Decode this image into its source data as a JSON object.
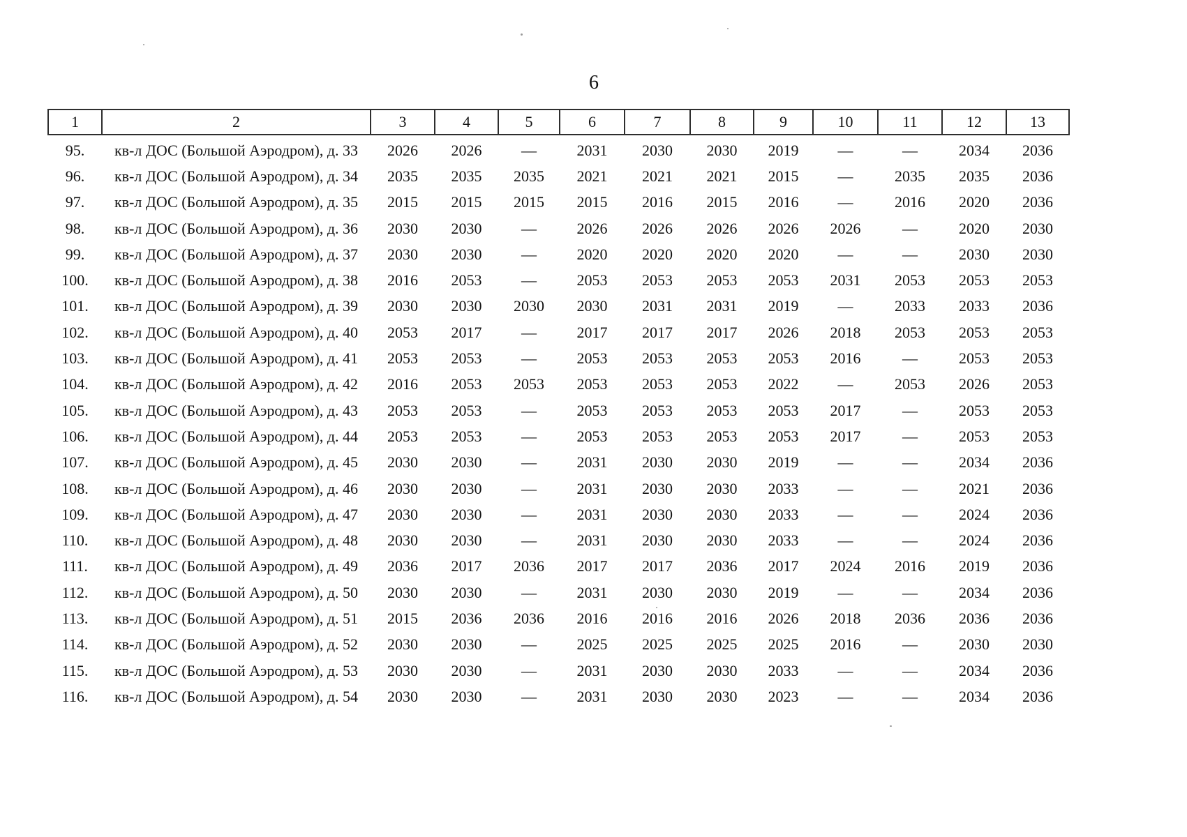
{
  "page": {
    "number": "6"
  },
  "table": {
    "headers": [
      "1",
      "2",
      "3",
      "4",
      "5",
      "6",
      "7",
      "8",
      "9",
      "10",
      "11",
      "12",
      "13"
    ],
    "rows": [
      {
        "num": "95.",
        "name": "кв-л ДОС (Большой Аэродром), д. 33",
        "values": [
          "2026",
          "2026",
          "—",
          "2031",
          "2030",
          "2030",
          "2019",
          "—",
          "—",
          "2034",
          "2036"
        ]
      },
      {
        "num": "96.",
        "name": "кв-л ДОС (Большой Аэродром), д. 34",
        "values": [
          "2035",
          "2035",
          "2035",
          "2021",
          "2021",
          "2021",
          "2015",
          "—",
          "2035",
          "2035",
          "2036"
        ]
      },
      {
        "num": "97.",
        "name": "кв-л ДОС (Большой Аэродром), д. 35",
        "values": [
          "2015",
          "2015",
          "2015",
          "2015",
          "2016",
          "2015",
          "2016",
          "—",
          "2016",
          "2020",
          "2036"
        ]
      },
      {
        "num": "98.",
        "name": "кв-л ДОС (Большой Аэродром), д. 36",
        "values": [
          "2030",
          "2030",
          "—",
          "2026",
          "2026",
          "2026",
          "2026",
          "2026",
          "—",
          "2020",
          "2030"
        ]
      },
      {
        "num": "99.",
        "name": "кв-л ДОС (Большой Аэродром), д. 37",
        "values": [
          "2030",
          "2030",
          "—",
          "2020",
          "2020",
          "2020",
          "2020",
          "—",
          "—",
          "2030",
          "2030"
        ]
      },
      {
        "num": "100.",
        "name": "кв-л ДОС (Большой Аэродром), д. 38",
        "values": [
          "2016",
          "2053",
          "—",
          "2053",
          "2053",
          "2053",
          "2053",
          "2031",
          "2053",
          "2053",
          "2053"
        ]
      },
      {
        "num": "101.",
        "name": "кв-л ДОС (Большой Аэродром), д. 39",
        "values": [
          "2030",
          "2030",
          "2030",
          "2030",
          "2031",
          "2031",
          "2019",
          "—",
          "2033",
          "2033",
          "2036"
        ]
      },
      {
        "num": "102.",
        "name": "кв-л ДОС (Большой Аэродром), д. 40",
        "values": [
          "2053",
          "2017",
          "—",
          "2017",
          "2017",
          "2017",
          "2026",
          "2018",
          "2053",
          "2053",
          "2053"
        ]
      },
      {
        "num": "103.",
        "name": "кв-л ДОС (Большой Аэродром), д. 41",
        "values": [
          "2053",
          "2053",
          "—",
          "2053",
          "2053",
          "2053",
          "2053",
          "2016",
          "—",
          "2053",
          "2053"
        ]
      },
      {
        "num": "104.",
        "name": "кв-л ДОС (Большой Аэродром), д. 42",
        "values": [
          "2016",
          "2053",
          "2053",
          "2053",
          "2053",
          "2053",
          "2022",
          "—",
          "2053",
          "2026",
          "2053"
        ]
      },
      {
        "num": "105.",
        "name": "кв-л ДОС (Большой Аэродром), д. 43",
        "values": [
          "2053",
          "2053",
          "—",
          "2053",
          "2053",
          "2053",
          "2053",
          "2017",
          "—",
          "2053",
          "2053"
        ]
      },
      {
        "num": "106.",
        "name": "кв-л ДОС (Большой Аэродром), д. 44",
        "values": [
          "2053",
          "2053",
          "—",
          "2053",
          "2053",
          "2053",
          "2053",
          "2017",
          "—",
          "2053",
          "2053"
        ]
      },
      {
        "num": "107.",
        "name": "кв-л ДОС (Большой Аэродром), д. 45",
        "values": [
          "2030",
          "2030",
          "—",
          "2031",
          "2030",
          "2030",
          "2019",
          "—",
          "—",
          "2034",
          "2036"
        ]
      },
      {
        "num": "108.",
        "name": "кв-л ДОС (Большой Аэродром), д. 46",
        "values": [
          "2030",
          "2030",
          "—",
          "2031",
          "2030",
          "2030",
          "2033",
          "—",
          "—",
          "2021",
          "2036"
        ]
      },
      {
        "num": "109.",
        "name": "кв-л ДОС (Большой Аэродром), д. 47",
        "values": [
          "2030",
          "2030",
          "—",
          "2031",
          "2030",
          "2030",
          "2033",
          "—",
          "—",
          "2024",
          "2036"
        ]
      },
      {
        "num": "110.",
        "name": "кв-л ДОС (Большой Аэродром), д. 48",
        "values": [
          "2030",
          "2030",
          "—",
          "2031",
          "2030",
          "2030",
          "2033",
          "—",
          "—",
          "2024",
          "2036"
        ]
      },
      {
        "num": "111.",
        "name": "кв-л ДОС (Большой Аэродром), д. 49",
        "values": [
          "2036",
          "2017",
          "2036",
          "2017",
          "2017",
          "2036",
          "2017",
          "2024",
          "2016",
          "2019",
          "2036"
        ]
      },
      {
        "num": "112.",
        "name": "кв-л ДОС (Большой Аэродром), д. 50",
        "values": [
          "2030",
          "2030",
          "—",
          "2031",
          "2030",
          "2030",
          "2019",
          "—",
          "—",
          "2034",
          "2036"
        ]
      },
      {
        "num": "113.",
        "name": "кв-л ДОС (Большой Аэродром), д. 51",
        "values": [
          "2015",
          "2036",
          "2036",
          "2016",
          "2016",
          "2016",
          "2026",
          "2018",
          "2036",
          "2036",
          "2036"
        ]
      },
      {
        "num": "114.",
        "name": "кв-л ДОС (Большой Аэродром), д. 52",
        "values": [
          "2030",
          "2030",
          "—",
          "2025",
          "2025",
          "2025",
          "2025",
          "2016",
          "—",
          "2030",
          "2030"
        ]
      },
      {
        "num": "115.",
        "name": "кв-л ДОС (Большой Аэродром), д. 53",
        "values": [
          "2030",
          "2030",
          "—",
          "2031",
          "2030",
          "2030",
          "2033",
          "—",
          "—",
          "2034",
          "2036"
        ]
      },
      {
        "num": "116.",
        "name": "кв-л ДОС (Большой Аэродром), д. 54",
        "values": [
          "2030",
          "2030",
          "—",
          "2031",
          "2030",
          "2030",
          "2023",
          "—",
          "—",
          "2034",
          "2036"
        ]
      }
    ]
  }
}
